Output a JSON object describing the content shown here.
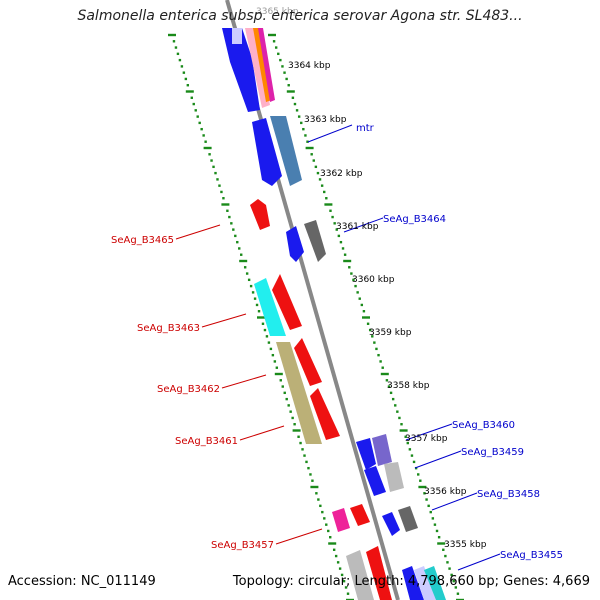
{
  "title": "Salmonella enterica subsp. enterica serovar Agona str. SL483...",
  "accession": "Accession: NC_011149",
  "topology": "Topology: circular; Length: 4,798,660 bp; Genes: 4,669",
  "kbp_labels": [
    "3365 kbp",
    "3364 kbp",
    "3363 kbp",
    "3362 kbp",
    "3361 kbp",
    "3360 kbp",
    "3359 kbp",
    "3358 kbp",
    "3357 kbp",
    "3356 kbp",
    "3355 kbp"
  ],
  "genes_forward": [
    "mtr",
    "SeAg_B3464",
    "SeAg_B3460",
    "SeAg_B3459",
    "SeAg_B3458",
    "SeAg_B3455"
  ],
  "genes_reverse": [
    "SeAg_B3465",
    "SeAg_B3463",
    "SeAg_B3462",
    "SeAg_B3461",
    "SeAg_B3457"
  ],
  "colors": {
    "backbone": "#888888",
    "tick": "#1a8a1a",
    "forward_label": "#0000cc",
    "reverse_label": "#cc0000",
    "blue": "#1a1aee",
    "red": "#ee1111",
    "cyan": "#22eeee",
    "olive": "#bbb077",
    "steelblue": "#4a7fb0",
    "gray": "#666666",
    "slate": "#7766cc",
    "magenta": "#ee2299",
    "silver": "#bbbbbb"
  }
}
